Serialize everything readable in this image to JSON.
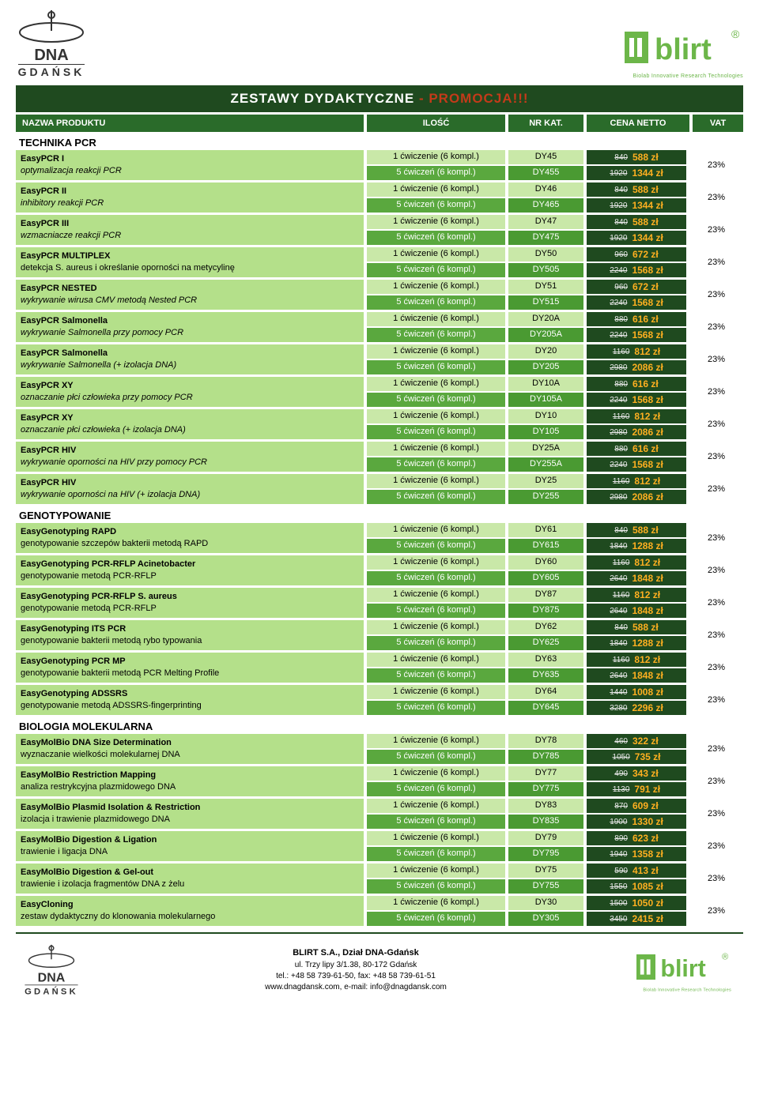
{
  "banner": {
    "title": "ZESTAWY DYDAKTYCZNE",
    "promo": "- PROMOCJA!!!"
  },
  "headers": {
    "name": "NAZWA PRODUKTU",
    "qty": "ILOŚĆ",
    "cat": "NR KAT.",
    "price": "CENA NETTO",
    "vat": "VAT"
  },
  "logos": {
    "dna_top": "DNA",
    "dna_sub": "GDAŃSK",
    "blirt": "blirt",
    "blirt_cap": "Biolab Innovative Research Technologies",
    "reg": "®"
  },
  "footer": {
    "company": "BLIRT S.A., Dział DNA-Gdańsk",
    "addr": "ul. Trzy lipy 3/1.38,  80-172 Gdańsk",
    "tel": "tel.: +48 58 739-61-50,   fax: +48 58 739-61-51",
    "web": "www.dnagdansk.com,   e-mail: info@dnagdansk.com"
  },
  "labels": {
    "ex1": "1 ćwiczenie (6 kompl.)",
    "ex5": "5 ćwiczeń (6 kompl.)",
    "zl": "zł",
    "vat": "23%"
  },
  "sections": [
    {
      "title": "TECHNIKA PCR",
      "products": [
        {
          "bold": "EasyPCR I",
          "rest": "   optymalizacja reakcji PCR",
          "v": [
            {
              "c": "DY45",
              "o": "840",
              "n": "588"
            },
            {
              "c": "DY455",
              "o": "1920",
              "n": "1344"
            }
          ]
        },
        {
          "bold": "EasyPCR II",
          "rest": "   inhibitory reakcji PCR",
          "v": [
            {
              "c": "DY46",
              "o": "840",
              "n": "588"
            },
            {
              "c": "DY465",
              "o": "1920",
              "n": "1344"
            }
          ]
        },
        {
          "bold": "EasyPCR III",
          "rest": "   wzmacniacze reakcji PCR",
          "v": [
            {
              "c": "DY47",
              "o": "840",
              "n": "588"
            },
            {
              "c": "DY475",
              "o": "1920",
              "n": "1344"
            }
          ]
        },
        {
          "bold": "EasyPCR MULTIPLEX",
          "sub": "detekcja S. aureus  i określanie oporności na metycylinę",
          "v": [
            {
              "c": "DY50",
              "o": "960",
              "n": "672"
            },
            {
              "c": "DY505",
              "o": "2240",
              "n": "1568"
            }
          ]
        },
        {
          "bold": "EasyPCR NESTED",
          "rest": "   wykrywanie wirusa CMV metodą Nested PCR",
          "v": [
            {
              "c": "DY51",
              "o": "960",
              "n": "672"
            },
            {
              "c": "DY515",
              "o": "2240",
              "n": "1568"
            }
          ]
        },
        {
          "bold": "EasyPCR Salmonella",
          "rest": "   wykrywanie Salmonella przy pomocy PCR",
          "v": [
            {
              "c": "DY20A",
              "o": "880",
              "n": "616"
            },
            {
              "c": "DY205A",
              "o": "2240",
              "n": "1568"
            }
          ]
        },
        {
          "bold": "EasyPCR Salmonella",
          "rest": "   wykrywanie Salmonella  (+ izolacja DNA)",
          "v": [
            {
              "c": "DY20",
              "o": "1160",
              "n": "812"
            },
            {
              "c": "DY205",
              "o": "2980",
              "n": "2086"
            }
          ]
        },
        {
          "bold": "EasyPCR XY",
          "rest": "   oznaczanie płci człowieka przy pomocy PCR",
          "v": [
            {
              "c": "DY10A",
              "o": "880",
              "n": "616"
            },
            {
              "c": "DY105A",
              "o": "2240",
              "n": "1568"
            }
          ]
        },
        {
          "bold": "EasyPCR XY",
          "rest": "   oznaczanie płci człowieka (+ izolacja DNA)",
          "v": [
            {
              "c": "DY10",
              "o": "1160",
              "n": "812"
            },
            {
              "c": "DY105",
              "o": "2980",
              "n": "2086"
            }
          ]
        },
        {
          "bold": "EasyPCR HIV",
          "rest": "   wykrywanie oporności na HIV przy pomocy PCR",
          "v": [
            {
              "c": "DY25A",
              "o": "880",
              "n": "616"
            },
            {
              "c": "DY255A",
              "o": "2240",
              "n": "1568"
            }
          ]
        },
        {
          "bold": "EasyPCR HIV",
          "rest": "   wykrywanie oporności na HIV (+ izolacja DNA)",
          "v": [
            {
              "c": "DY25",
              "o": "1160",
              "n": "812"
            },
            {
              "c": "DY255",
              "o": "2980",
              "n": "2086"
            }
          ]
        }
      ]
    },
    {
      "title": "GENOTYPOWANIE",
      "products": [
        {
          "bold": "EasyGenotyping RAPD",
          "sub": "genotypowanie szczepów bakterii metodą RAPD",
          "v": [
            {
              "c": "DY61",
              "o": "840",
              "n": "588"
            },
            {
              "c": "DY615",
              "o": "1840",
              "n": "1288"
            }
          ]
        },
        {
          "bold": "EasyGenotyping PCR-RFLP Acinetobacter",
          "sub": "genotypowanie metodą PCR-RFLP",
          "v": [
            {
              "c": "DY60",
              "o": "1160",
              "n": "812"
            },
            {
              "c": "DY605",
              "o": "2640",
              "n": "1848"
            }
          ]
        },
        {
          "bold": "EasyGenotyping PCR-RFLP S. aureus",
          "sub": "genotypowanie metodą PCR-RFLP",
          "v": [
            {
              "c": "DY87",
              "o": "1160",
              "n": "812"
            },
            {
              "c": "DY875",
              "o": "2640",
              "n": "1848"
            }
          ]
        },
        {
          "bold": "EasyGenotyping ITS PCR",
          "sub": "genotypowanie bakterii metodą rybo typowania",
          "v": [
            {
              "c": "DY62",
              "o": "840",
              "n": "588"
            },
            {
              "c": "DY625",
              "o": "1840",
              "n": "1288"
            }
          ]
        },
        {
          "bold": "EasyGenotyping PCR MP",
          "sub": "genotypowanie bakterii metodą PCR Melting Profile",
          "v": [
            {
              "c": "DY63",
              "o": "1160",
              "n": "812"
            },
            {
              "c": "DY635",
              "o": "2640",
              "n": "1848"
            }
          ]
        },
        {
          "bold": "EasyGenotyping ADSSRS",
          "sub": "genotypowanie metodą ADSSRS-fingerprinting",
          "v": [
            {
              "c": "DY64",
              "o": "1440",
              "n": "1008"
            },
            {
              "c": "DY645",
              "o": "3280",
              "n": "2296"
            }
          ]
        }
      ]
    },
    {
      "title": "BIOLOGIA MOLEKULARNA",
      "products": [
        {
          "bold": "EasyMolBio DNA Size Determination",
          "sub": "wyznaczanie wielkości molekularnej DNA",
          "v": [
            {
              "c": "DY78",
              "o": "460",
              "n": "322"
            },
            {
              "c": "DY785",
              "o": "1050",
              "n": "735"
            }
          ]
        },
        {
          "bold": "EasyMolBio Restriction Mapping",
          "sub": "analiza restrykcyjna plazmidowego DNA",
          "v": [
            {
              "c": "DY77",
              "o": "490",
              "n": "343"
            },
            {
              "c": "DY775",
              "o": "1130",
              "n": "791"
            }
          ]
        },
        {
          "bold": "EasyMolBio Plasmid Isolation & Restriction",
          "sub": "izolacja i trawienie plazmidowego DNA",
          "v": [
            {
              "c": "DY83",
              "o": "870",
              "n": "609"
            },
            {
              "c": "DY835",
              "o": "1900",
              "n": "1330"
            }
          ]
        },
        {
          "bold": "EasyMolBio Digestion & Ligation",
          "sub": "trawienie i ligacja DNA",
          "v": [
            {
              "c": "DY79",
              "o": "890",
              "n": "623"
            },
            {
              "c": "DY795",
              "o": "1940",
              "n": "1358"
            }
          ]
        },
        {
          "bold": "EasyMolBio Digestion & Gel-out",
          "sub": "trawienie i izolacja fragmentów DNA z żelu",
          "v": [
            {
              "c": "DY75",
              "o": "590",
              "n": "413"
            },
            {
              "c": "DY755",
              "o": "1550",
              "n": "1085"
            }
          ]
        },
        {
          "bold": "EasyCloning",
          "sub": "zestaw dydaktyczny do klonowania molekularnego",
          "v": [
            {
              "c": "DY30",
              "o": "1500",
              "n": "1050"
            },
            {
              "c": "DY305",
              "o": "3450",
              "n": "2415"
            }
          ]
        }
      ]
    }
  ],
  "colors": {
    "dark_green": "#1f4a1f",
    "header_green": "#2a6b2a",
    "light_bg": "#b4e08a",
    "light_cell": "#c9e8a8",
    "mid_green": "#5aa83e",
    "mid_green2": "#4a9a32",
    "promo_red": "#c43a1a",
    "price_new": "#ffb020"
  }
}
